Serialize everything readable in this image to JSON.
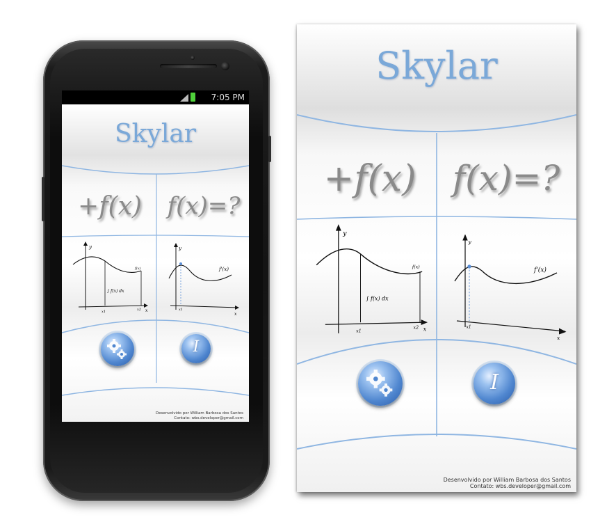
{
  "app": {
    "title": "Skylar",
    "integral_label": "+f(x)",
    "derivative_label": "f(x)=?",
    "info_glyph": "I",
    "footer_line1": "Desenvolvido por William Barbosa dos Santos",
    "footer_line2": "Contato: wbs.developer@gmail.com",
    "integral_graph": {
      "y": "y",
      "fx": "f(x)",
      "integral": "∫ f(x) dx",
      "x1": "x1",
      "x2": "x2",
      "x": "x"
    },
    "derivative_graph": {
      "y": "y",
      "fprime": "f'(x)",
      "x1": "x1",
      "x": "x"
    }
  },
  "status_bar": {
    "time": "7:05 PM"
  },
  "icons": {
    "settings": "gears-icon",
    "info": "info-icon",
    "signal": "signal-icon",
    "battery": "battery-icon"
  },
  "colors": {
    "title_blue": "#7aa8d8",
    "divider_blue": "#8fb6e2",
    "button_blue": "#4f86cf",
    "battery_green": "#4fd13a"
  }
}
